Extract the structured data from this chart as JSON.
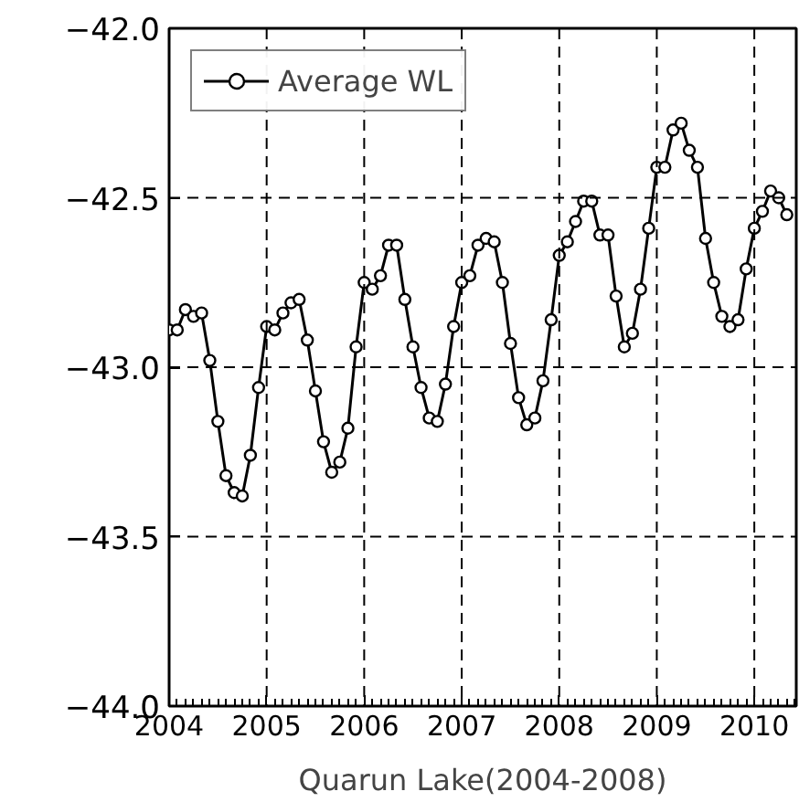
{
  "chart_data": {
    "type": "line",
    "xlabel": "Quarun Lake(2004-2008)",
    "x": [
      2004.0,
      2004.083,
      2004.167,
      2004.25,
      2004.333,
      2004.417,
      2004.5,
      2004.583,
      2004.667,
      2004.75,
      2004.833,
      2004.917,
      2005.0,
      2005.083,
      2005.167,
      2005.25,
      2005.333,
      2005.417,
      2005.5,
      2005.583,
      2005.667,
      2005.75,
      2005.833,
      2005.917,
      2006.0,
      2006.083,
      2006.167,
      2006.25,
      2006.333,
      2006.417,
      2006.5,
      2006.583,
      2006.667,
      2006.75,
      2006.833,
      2006.917,
      2007.0,
      2007.083,
      2007.167,
      2007.25,
      2007.333,
      2007.417,
      2007.5,
      2007.583,
      2007.667,
      2007.75,
      2007.833,
      2007.917,
      2008.0,
      2008.083,
      2008.167,
      2008.25,
      2008.333,
      2008.417,
      2008.5,
      2008.583,
      2008.667,
      2008.75,
      2008.833,
      2008.917,
      2009.0,
      2009.083,
      2009.167,
      2009.25,
      2009.333,
      2009.417,
      2009.5,
      2009.583,
      2009.667,
      2009.75,
      2009.833,
      2009.917,
      2010.0,
      2010.083,
      2010.167,
      2010.25,
      2010.333
    ],
    "series": [
      {
        "name": "Average WL",
        "color": "#000000",
        "values": [
          -42.89,
          -42.89,
          -42.83,
          -42.85,
          -42.84,
          -42.98,
          -43.16,
          -43.32,
          -43.37,
          -43.38,
          -43.26,
          -43.06,
          -42.88,
          -42.89,
          -42.84,
          -42.81,
          -42.8,
          -42.92,
          -43.07,
          -43.22,
          -43.31,
          -43.28,
          -43.18,
          -42.94,
          -42.75,
          -42.77,
          -42.73,
          -42.64,
          -42.64,
          -42.8,
          -42.94,
          -43.06,
          -43.15,
          -43.16,
          -43.05,
          -42.88,
          -42.75,
          -42.73,
          -42.64,
          -42.62,
          -42.63,
          -42.75,
          -42.93,
          -43.09,
          -43.17,
          -43.15,
          -43.04,
          -42.86,
          -42.67,
          -42.63,
          -42.57,
          -42.51,
          -42.51,
          -42.61,
          -42.61,
          -42.79,
          -42.94,
          -42.9,
          -42.77,
          -42.59,
          -42.41,
          -42.41,
          -42.3,
          -42.28,
          -42.36,
          -42.41,
          -42.62,
          -42.75,
          -42.85,
          -42.88,
          -42.86,
          -42.71,
          -42.59,
          -42.54,
          -42.48,
          -42.5,
          -42.55
        ]
      }
    ],
    "xlim": [
      2004,
      2010.43
    ],
    "xticks": [
      2004,
      2005,
      2006,
      2007,
      2008,
      2009,
      2010
    ],
    "ylim": [
      -44.0,
      -42.0
    ],
    "yticks": [
      {
        "value": -44.0,
        "label": "−44.0"
      },
      {
        "value": -43.5,
        "label": "−43.5"
      },
      {
        "value": -43.0,
        "label": "−43.0"
      },
      {
        "value": -42.5,
        "label": "−42.5"
      },
      {
        "value": -42.0,
        "label": "−42.0"
      }
    ],
    "grid": true,
    "legend": "top left",
    "marker": "circle",
    "line_style": "solid"
  }
}
